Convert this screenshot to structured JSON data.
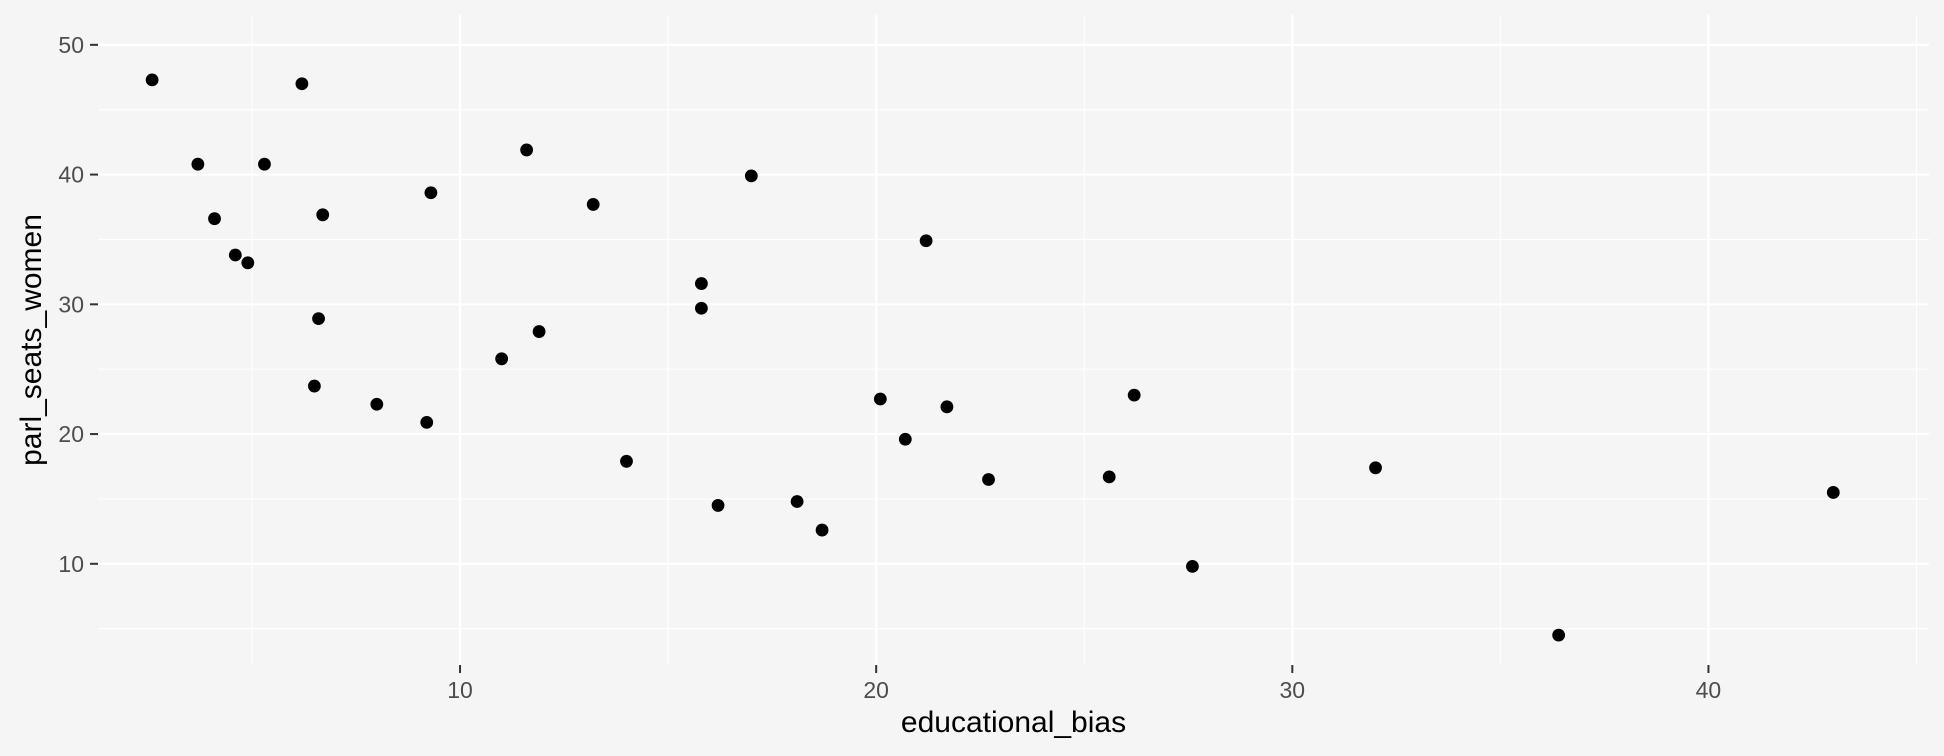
{
  "chart_data": {
    "type": "scatter",
    "xlabel": "educational_bias",
    "ylabel": "parl_seats_women",
    "xlim": [
      1.3,
      45.3
    ],
    "ylim": [
      2.2,
      52.3
    ],
    "x_ticks": [
      10,
      20,
      30,
      40
    ],
    "x_tick_labels": [
      "10",
      "20",
      "30",
      "40"
    ],
    "y_ticks": [
      10,
      20,
      30,
      40,
      50
    ],
    "y_tick_labels": [
      "10",
      "20",
      "30",
      "40",
      "50"
    ],
    "grid": true,
    "point_color": "#000000",
    "background_color": "#f5f5f5",
    "grid_color": "#ffffff",
    "points": [
      {
        "x": 2.6,
        "y": 47.3
      },
      {
        "x": 3.7,
        "y": 40.8
      },
      {
        "x": 4.1,
        "y": 36.6
      },
      {
        "x": 4.6,
        "y": 33.8
      },
      {
        "x": 4.9,
        "y": 33.2
      },
      {
        "x": 5.3,
        "y": 40.8
      },
      {
        "x": 6.2,
        "y": 47.0
      },
      {
        "x": 6.5,
        "y": 23.7
      },
      {
        "x": 6.6,
        "y": 28.9
      },
      {
        "x": 6.7,
        "y": 36.9
      },
      {
        "x": 8.0,
        "y": 22.3
      },
      {
        "x": 9.2,
        "y": 20.9
      },
      {
        "x": 9.3,
        "y": 38.6
      },
      {
        "x": 11.0,
        "y": 25.8
      },
      {
        "x": 11.6,
        "y": 41.9
      },
      {
        "x": 11.9,
        "y": 27.9
      },
      {
        "x": 13.2,
        "y": 37.7
      },
      {
        "x": 14.0,
        "y": 17.9
      },
      {
        "x": 15.8,
        "y": 31.6
      },
      {
        "x": 15.8,
        "y": 29.7
      },
      {
        "x": 16.2,
        "y": 14.5
      },
      {
        "x": 17.0,
        "y": 39.9
      },
      {
        "x": 18.1,
        "y": 14.8
      },
      {
        "x": 18.7,
        "y": 12.6
      },
      {
        "x": 20.1,
        "y": 22.7
      },
      {
        "x": 20.7,
        "y": 19.6
      },
      {
        "x": 21.2,
        "y": 34.9
      },
      {
        "x": 21.7,
        "y": 22.1
      },
      {
        "x": 22.7,
        "y": 16.5
      },
      {
        "x": 25.6,
        "y": 16.7
      },
      {
        "x": 26.2,
        "y": 23.0
      },
      {
        "x": 27.6,
        "y": 9.8
      },
      {
        "x": 32.0,
        "y": 17.4
      },
      {
        "x": 36.4,
        "y": 4.5
      },
      {
        "x": 43.0,
        "y": 15.5
      }
    ]
  }
}
